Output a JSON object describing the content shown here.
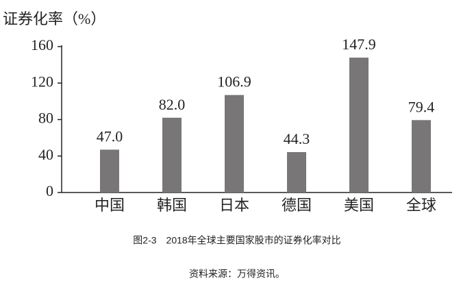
{
  "chart_data": {
    "type": "bar",
    "y_label": "证券化率（%）",
    "categories": [
      "中国",
      "韩国",
      "日本",
      "德国",
      "美国",
      "全球"
    ],
    "values": [
      47.0,
      82.0,
      106.9,
      44.3,
      147.9,
      79.4
    ],
    "value_labels": [
      "47.0",
      "82.0",
      "106.9",
      "44.3",
      "147.9",
      "79.4"
    ],
    "color": "#787676",
    "ylim": [
      0,
      160
    ],
    "yticks": [
      0,
      40,
      80,
      120,
      160
    ],
    "caption": "图2-3　2018年全球主要国家股市的证券化率对比",
    "source": "资料来源：万得资讯。"
  }
}
